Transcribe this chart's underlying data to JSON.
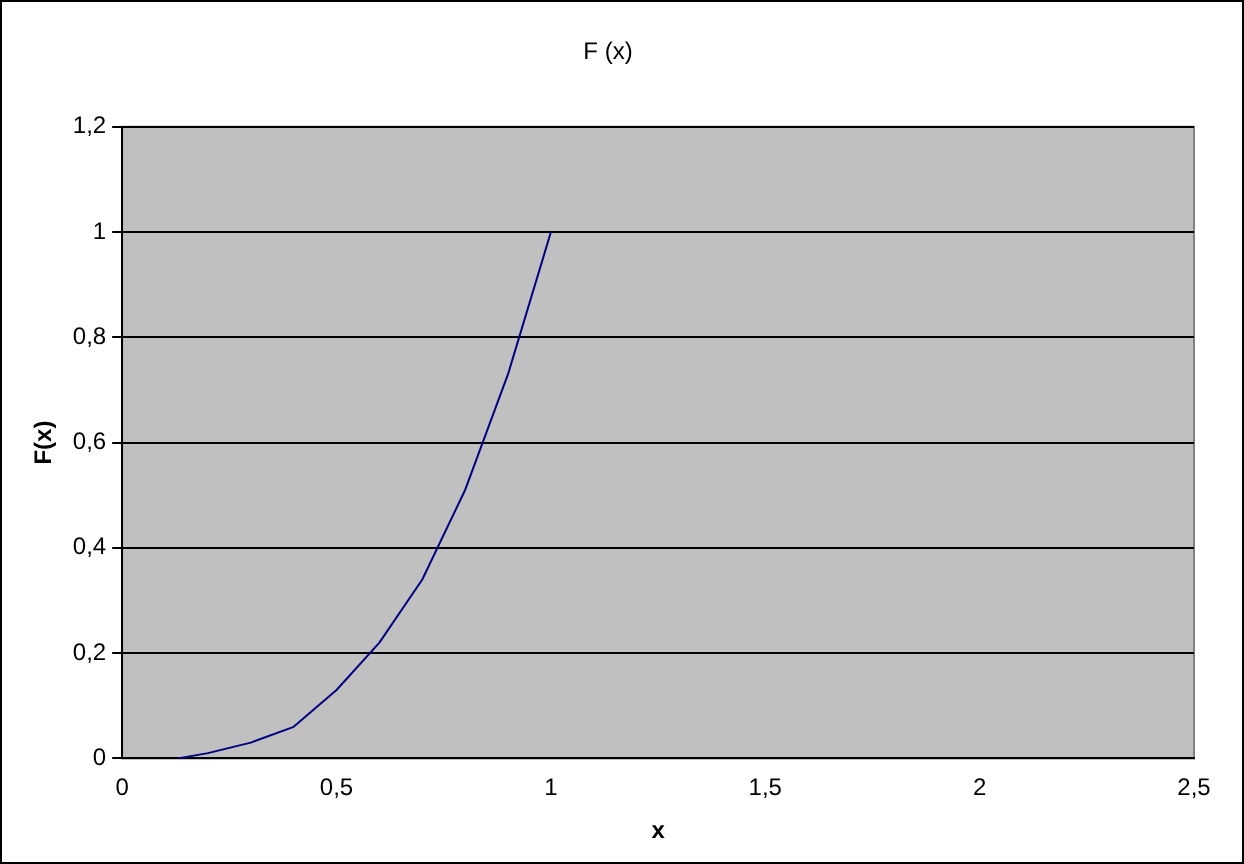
{
  "chart_data": {
    "type": "line",
    "title": "F (x)",
    "xlabel": "x",
    "ylabel": "F(x)",
    "x": [
      0.13,
      0.2,
      0.3,
      0.4,
      0.5,
      0.6,
      0.7,
      0.8,
      0.9,
      1
    ],
    "series": [
      {
        "color": "#000080",
        "values": [
          0,
          0.01,
          0.03,
          0.06,
          0.13,
          0.22,
          0.34,
          0.51,
          0.73,
          1
        ]
      }
    ],
    "xlim": [
      0,
      2.5
    ],
    "xticks": [
      0,
      {
        "value": 0.5,
        "label": "0,5"
      },
      1,
      {
        "value": 1.5,
        "label": "1,5"
      },
      2,
      {
        "value": 2.5,
        "label": "2,5"
      }
    ],
    "ylim": [
      0,
      1.2
    ],
    "yticks": [
      0,
      {
        "value": 0.2,
        "label": "0,2"
      },
      {
        "value": 0.4,
        "label": "0,4"
      },
      {
        "value": 0.6,
        "label": "0,6"
      },
      {
        "value": 0.8,
        "label": "0,8"
      },
      1,
      {
        "value": 1.2,
        "label": "1,2"
      }
    ],
    "grid": "y",
    "legend": false,
    "marker": "none",
    "line_style": "solid"
  }
}
